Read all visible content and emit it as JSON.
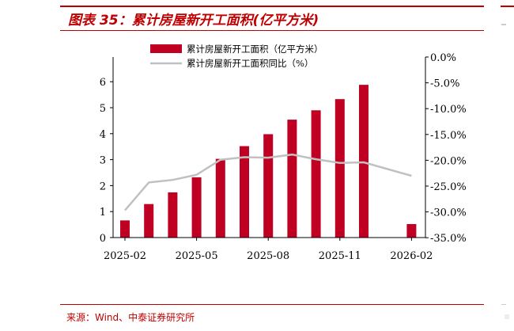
{
  "header": {
    "title": "图表 35：累计房屋新开工面积(亿平方米)"
  },
  "footer": {
    "source": "来源：Wind、中泰证券研究所"
  },
  "colors": {
    "accent": "#c00000",
    "bar": "#c00022",
    "line": "#c0c0c0"
  },
  "chart_data": {
    "type": "bar",
    "title": "",
    "categories": [
      "2025-02",
      "2025-03",
      "2025-04",
      "2025-05",
      "2025-06",
      "2025-07",
      "2025-08",
      "2025-09",
      "2025-10",
      "2025-11",
      "2025-12",
      "2026-01",
      "2026-02"
    ],
    "x_tick_labels": [
      "2025-02",
      "2025-05",
      "2025-08",
      "2025-11",
      "2026-02"
    ],
    "series": [
      {
        "name": "累计房屋新开工面积（亿平方米）",
        "type": "bar",
        "axis": "left",
        "values": [
          0.66,
          1.29,
          1.74,
          2.32,
          3.03,
          3.52,
          3.98,
          4.54,
          4.9,
          5.33,
          5.88,
          null,
          0.52
        ]
      },
      {
        "name": "累计房屋新开工面积同比（%）",
        "type": "line",
        "axis": "right",
        "values": [
          -29.7,
          -24.3,
          -23.8,
          -22.8,
          -19.9,
          -19.4,
          -19.5,
          -18.9,
          -19.8,
          -20.5,
          -20.4,
          null,
          -23.0
        ]
      }
    ],
    "y_left": {
      "lim": [
        0,
        6.5
      ],
      "ticks": [
        0,
        1,
        2,
        3,
        4,
        5,
        6
      ]
    },
    "y_right": {
      "lim": [
        -35,
        0
      ],
      "ticks": [
        0,
        -5,
        -10,
        -15,
        -20,
        -25,
        -30,
        -35
      ],
      "tick_labels": [
        "0.0%",
        "-5.0%",
        "-10.0%",
        "-15.0%",
        "-20.0%",
        "-25.0%",
        "-30.0%",
        "-35.0%"
      ]
    },
    "legend_position": "top-center",
    "grid": false
  }
}
